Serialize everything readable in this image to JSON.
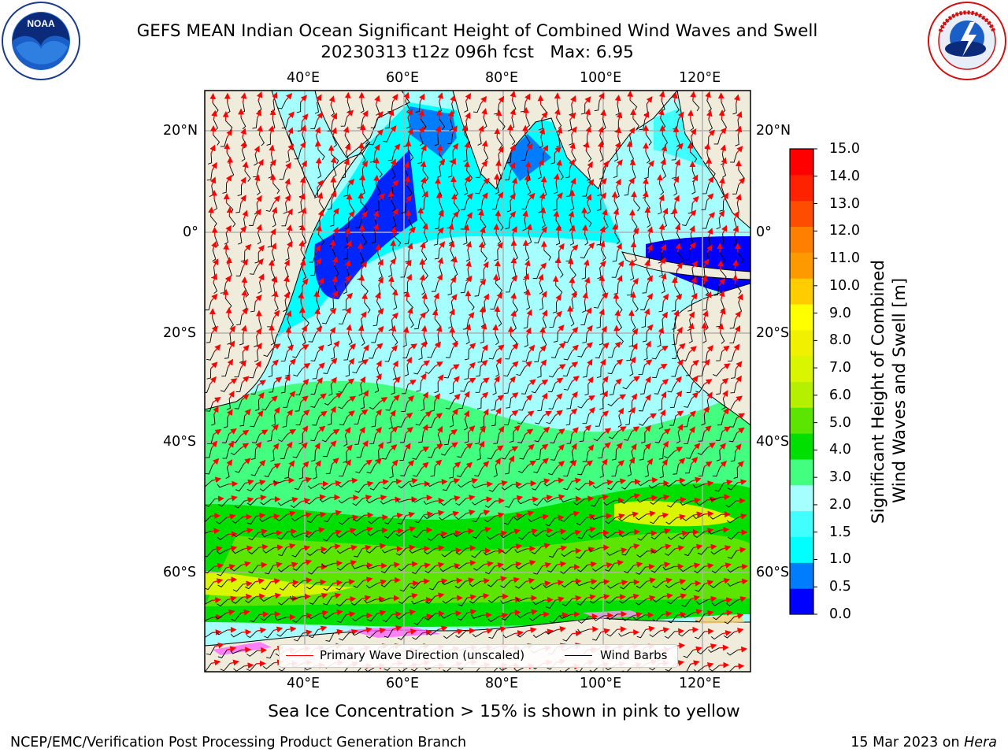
{
  "header": {
    "title_line1": "GEFS MEAN Indian Ocean Significant Height of Combined Wind Waves and Swell",
    "title_line2": "20230313 t12z 096h fcst   Max: 6.95"
  },
  "logos": {
    "left": "noaa-seal-icon",
    "right": "nws-seal-icon"
  },
  "map": {
    "top_lon_labels": [
      "40°E",
      "60°E",
      "80°E",
      "100°E",
      "120°E"
    ],
    "bottom_lon_labels": [
      "40°E",
      "60°E",
      "80°E",
      "100°E",
      "120°E"
    ],
    "left_lat_labels": [
      "20°N",
      "0°",
      "20°S",
      "40°S",
      "60°S"
    ],
    "right_lat_labels": [
      "20°N",
      "0°",
      "20°S",
      "40°S",
      "60°S"
    ],
    "land_color": "#efecdc",
    "wave_dir_color": "#ff0000",
    "wind_barb_color": "#000000"
  },
  "colorbar": {
    "ticks": [
      "15.0",
      "14.0",
      "13.0",
      "12.0",
      "11.0",
      "10.0",
      "9.0",
      "8.0",
      "7.0",
      "6.0",
      "5.0",
      "4.0",
      "3.0",
      "2.0",
      "1.5",
      "1.0",
      "0.5",
      "0.0"
    ],
    "colors": [
      "#0000ff",
      "#007dff",
      "#00ffff",
      "#42ffff",
      "#a6ffff",
      "#42ff80",
      "#00e000",
      "#5ce500",
      "#b4f000",
      "#d9f500",
      "#f0f000",
      "#ffff00",
      "#ffcc00",
      "#ff9900",
      "#ff8000",
      "#ff4d00",
      "#ff2200",
      "#ff0000"
    ],
    "title_line1": "Significant Height of Combined",
    "title_line2": "Wind Waves and Swell [m]"
  },
  "legend": {
    "wave_label": "Primary Wave Direction (unscaled)",
    "barb_label": "Wind Barbs"
  },
  "note": "Sea Ice Concentration > 15% is shown in pink to yellow",
  "footer": {
    "left": "NCEP/EMC/Verification Post Processing Product Generation Branch",
    "date": "15 Mar 2023 on ",
    "machine": "Hera"
  }
}
